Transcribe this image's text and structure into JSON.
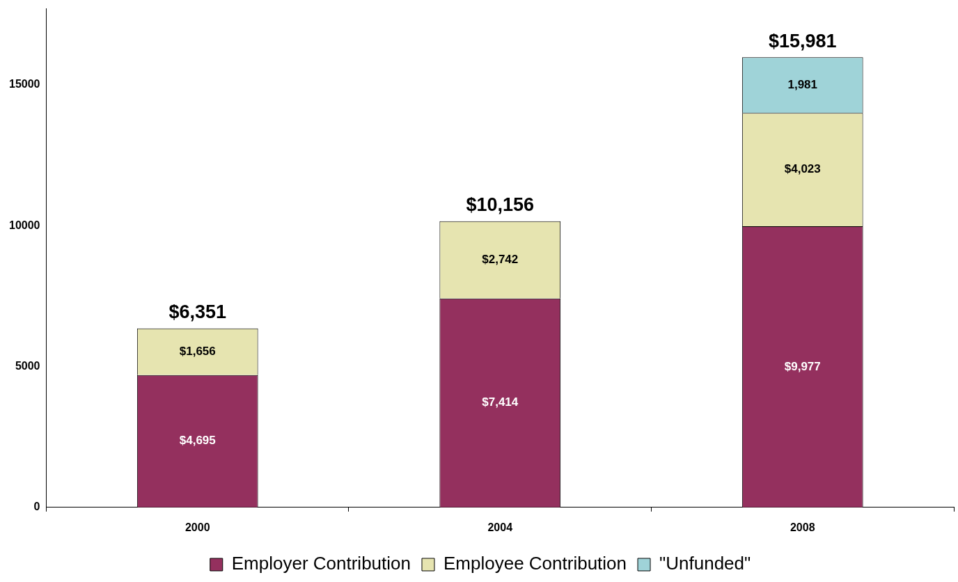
{
  "chart_data": {
    "type": "bar",
    "stacked": true,
    "categories": [
      "2000",
      "2004",
      "2008"
    ],
    "series": [
      {
        "name": "Employer Contribution",
        "color": "#94305e",
        "values": [
          4695,
          7414,
          9977
        ],
        "value_labels": [
          "$4,695",
          "$7,414",
          "$9,977"
        ]
      },
      {
        "name": "Employee Contribution",
        "color": "#e6e4b0",
        "values": [
          1656,
          2742,
          4023
        ],
        "value_labels": [
          "$1,656",
          "$2,742",
          "$4,023"
        ]
      },
      {
        "name": "\"Unfunded\"",
        "color": "#9fd3d8",
        "values": [
          null,
          null,
          1981
        ],
        "value_labels": [
          null,
          null,
          "1,981"
        ]
      }
    ],
    "totals": [
      "$6,351",
      "$10,156",
      "$15,981"
    ],
    "ylim": [
      0,
      17700
    ],
    "yticks": [
      0,
      5000,
      10000,
      15000
    ],
    "grid": false,
    "legend": "bottom"
  }
}
